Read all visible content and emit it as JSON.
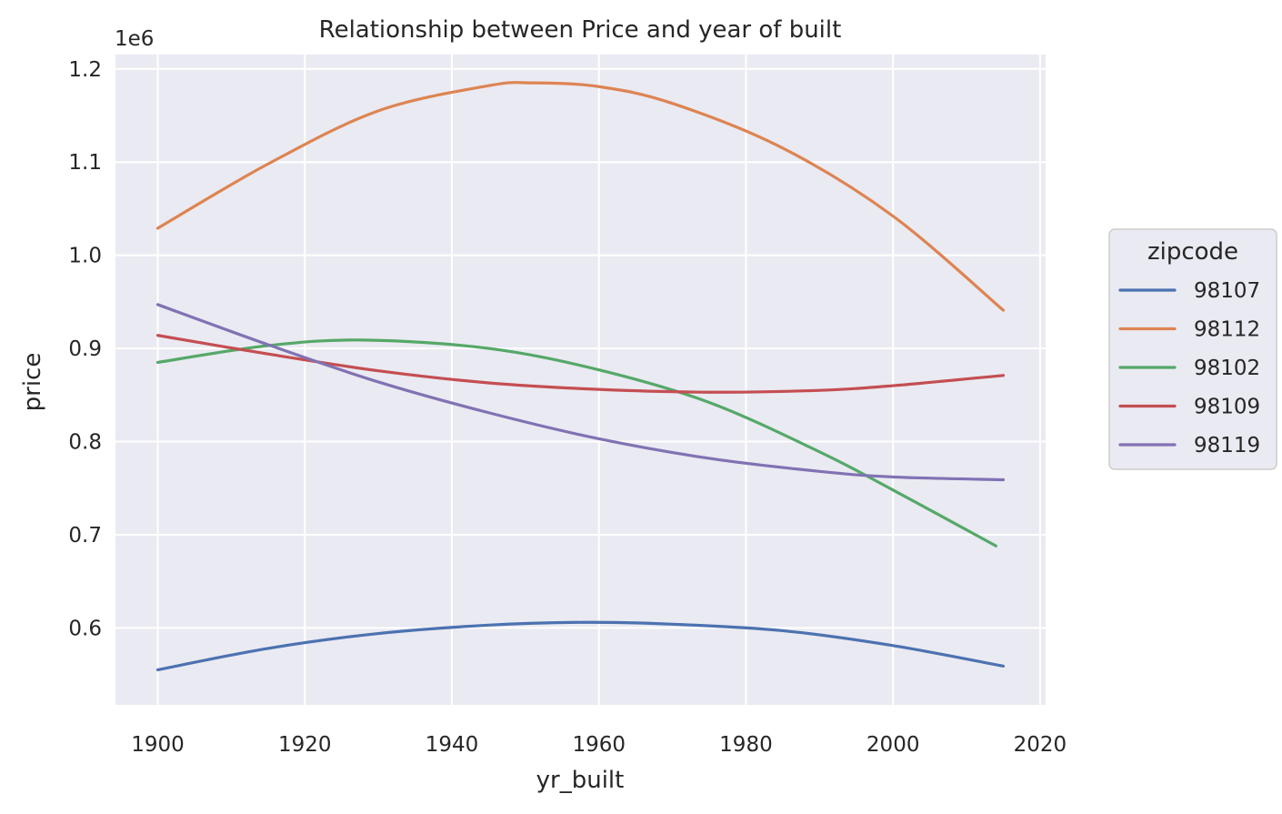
{
  "chart_data": {
    "type": "line",
    "title": "Relationship between Price and year of built",
    "xlabel": "yr_built",
    "ylabel": "price",
    "y_offset_label": "1e6",
    "xlim": [
      1894.25,
      2020.75
    ],
    "ylim": [
      0.5174,
      1.2154
    ],
    "x_ticks": [
      1900,
      1920,
      1940,
      1960,
      1980,
      2000,
      2020
    ],
    "y_ticks": [
      0.6,
      0.7,
      0.8,
      0.9,
      1.0,
      1.1,
      1.2
    ],
    "x_tick_labels": [
      "1900",
      "1920",
      "1940",
      "1960",
      "1980",
      "2000",
      "2020"
    ],
    "y_tick_labels": [
      "0.6",
      "0.7",
      "0.8",
      "0.9",
      "1.0",
      "1.1",
      "1.2"
    ],
    "grid": true,
    "legend": {
      "title": "zipcode",
      "placement": "right"
    },
    "series": [
      {
        "name": "98107",
        "color": "#4c72b0",
        "x": [
          1900,
          1915,
          1930,
          1945,
          1958,
          1970,
          1985,
          2000,
          2015
        ],
        "y": [
          0.555,
          0.578,
          0.594,
          0.603,
          0.606,
          0.604,
          0.597,
          0.581,
          0.559
        ]
      },
      {
        "name": "98112",
        "color": "#dd8452",
        "x": [
          1900,
          1915,
          1930,
          1945,
          1951,
          1960,
          1970,
          1985,
          2000,
          2015
        ],
        "y": [
          1.029,
          1.098,
          1.155,
          1.182,
          1.185,
          1.181,
          1.163,
          1.115,
          1.042,
          0.941
        ]
      },
      {
        "name": "98102",
        "color": "#55a868",
        "x": [
          1900,
          1915,
          1928,
          1945,
          1960,
          1975,
          1990,
          2000,
          2014
        ],
        "y": [
          0.885,
          0.903,
          0.909,
          0.9,
          0.877,
          0.842,
          0.789,
          0.748,
          0.688
        ]
      },
      {
        "name": "98109",
        "color": "#c44e52",
        "x": [
          1900,
          1915,
          1930,
          1945,
          1960,
          1975,
          1990,
          2000,
          2015
        ],
        "y": [
          0.914,
          0.894,
          0.876,
          0.863,
          0.856,
          0.853,
          0.855,
          0.86,
          0.871
        ]
      },
      {
        "name": "98119",
        "color": "#8172b3",
        "x": [
          1900,
          1915,
          1930,
          1945,
          1960,
          1975,
          1990,
          2000,
          2015
        ],
        "y": [
          0.947,
          0.904,
          0.864,
          0.831,
          0.803,
          0.782,
          0.768,
          0.762,
          0.759
        ]
      }
    ]
  }
}
